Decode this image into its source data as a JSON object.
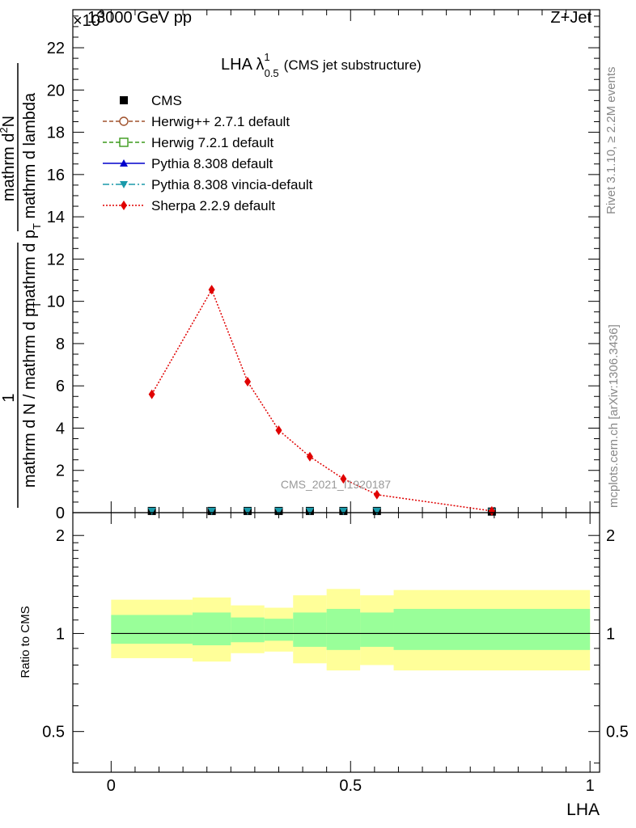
{
  "header": {
    "left": "13000 GeV pp",
    "right": "Z+Jet"
  },
  "side_text": {
    "rivet": "Rivet 3.1.10, ≥ 2.2M events",
    "mcplots": "mcplots.cern.ch [arXiv:1306.3436]"
  },
  "colors": {
    "cms": "#000000",
    "herwigpp": "#a0522d",
    "herwig7": "#3a9a1a",
    "pythia": "#0000cc",
    "vincia": "#1a9aaa",
    "sherpa": "#e00000",
    "band_outer": "#ffff99",
    "band_inner": "#99ff99"
  },
  "chart_data": [
    {
      "type": "line",
      "title_main": "LHA λ",
      "title_sup": "1",
      "title_sub": "0.5",
      "title_tail": "(CMS jet substructure)",
      "scale_label": "×10",
      "scale_exp": "-3",
      "xlabel": "",
      "ylabel_parts": {
        "numerator_one": "1",
        "denominator": "mathrm d N / mathrm d p",
        "denominator_sub": "T",
        "numerator_frac_top": "mathrm d",
        "numerator_frac_top_sup": "2",
        "numerator_frac_top_end": "N",
        "numerator_frac_bot": "mathrm d p",
        "numerator_frac_bot_sub": "T",
        "numerator_frac_bot_end": " mathrm d lambda"
      },
      "xlim": [
        -0.08,
        1.02
      ],
      "ylim": [
        0,
        23.8
      ],
      "yticks": [
        0,
        2,
        4,
        6,
        8,
        10,
        12,
        14,
        16,
        18,
        20,
        22
      ],
      "ytick_labels": [
        "0",
        "2",
        "4",
        "6",
        "8",
        "10",
        "12",
        "14",
        "16",
        "18",
        "20",
        "22"
      ],
      "watermark": "CMS_2021_I1920187",
      "legend": [
        {
          "name": "CMS",
          "style": "cms"
        },
        {
          "name": "Herwig++ 2.7.1 default",
          "style": "herwigpp"
        },
        {
          "name": "Herwig 7.2.1 default",
          "style": "herwig7"
        },
        {
          "name": "Pythia 8.308 default",
          "style": "pythia"
        },
        {
          "name": "Pythia 8.308 vincia-default",
          "style": "vincia"
        },
        {
          "name": "Sherpa 2.2.9 default",
          "style": "sherpa"
        }
      ],
      "x_points": [
        0.085,
        0.21,
        0.285,
        0.35,
        0.415,
        0.485,
        0.555,
        0.795
      ],
      "series": [
        {
          "name": "CMS",
          "style": "cms",
          "values": [
            0.08,
            0.08,
            0.08,
            0.08,
            0.08,
            0.08,
            0.08,
            0.05
          ]
        },
        {
          "name": "Pythia 8.308 vincia-default",
          "style": "vincia",
          "values": [
            0.08,
            0.08,
            0.08,
            0.08,
            0.08,
            0.08,
            0.08,
            0.05
          ]
        },
        {
          "name": "Sherpa 2.2.9 default",
          "style": "sherpa",
          "values": [
            5.6,
            10.55,
            6.2,
            3.9,
            2.65,
            1.6,
            0.85,
            0.08
          ]
        }
      ]
    },
    {
      "type": "area",
      "xlabel": "LHA",
      "ylabel": "Ratio to CMS",
      "xlim": [
        -0.08,
        1.02
      ],
      "ylim": [
        0.375,
        2.35
      ],
      "xticks": [
        0,
        0.5,
        1
      ],
      "xtick_labels": [
        "0",
        "0.5",
        "1"
      ],
      "yticks": [
        0.5,
        1,
        2
      ],
      "ytick_labels": [
        "0.5",
        "1",
        "2"
      ],
      "reference_line": 1,
      "bins": [
        {
          "x0": 0.0,
          "x1": 0.17,
          "outer": [
            0.84,
            1.27
          ],
          "inner": [
            0.93,
            1.14
          ]
        },
        {
          "x0": 0.17,
          "x1": 0.25,
          "outer": [
            0.82,
            1.29
          ],
          "inner": [
            0.92,
            1.16
          ]
        },
        {
          "x0": 0.25,
          "x1": 0.32,
          "outer": [
            0.87,
            1.22
          ],
          "inner": [
            0.94,
            1.12
          ]
        },
        {
          "x0": 0.32,
          "x1": 0.38,
          "outer": [
            0.88,
            1.2
          ],
          "inner": [
            0.95,
            1.11
          ]
        },
        {
          "x0": 0.38,
          "x1": 0.45,
          "outer": [
            0.81,
            1.31
          ],
          "inner": [
            0.91,
            1.16
          ]
        },
        {
          "x0": 0.45,
          "x1": 0.52,
          "outer": [
            0.77,
            1.37
          ],
          "inner": [
            0.89,
            1.19
          ]
        },
        {
          "x0": 0.52,
          "x1": 0.59,
          "outer": [
            0.8,
            1.31
          ],
          "inner": [
            0.91,
            1.16
          ]
        },
        {
          "x0": 0.59,
          "x1": 1.0,
          "outer": [
            0.77,
            1.36
          ],
          "inner": [
            0.89,
            1.19
          ]
        }
      ]
    }
  ]
}
